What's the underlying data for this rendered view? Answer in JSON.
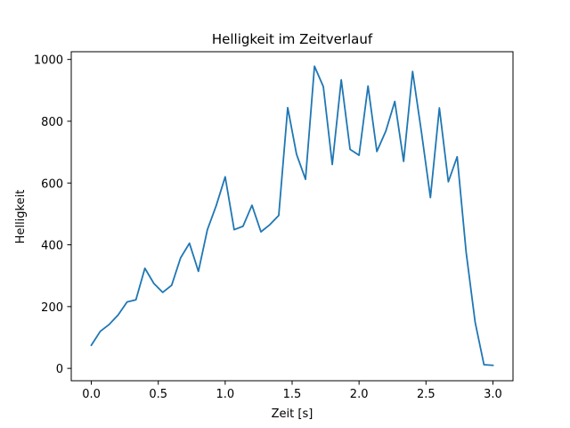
{
  "chart_data": {
    "type": "line",
    "title": "Helligkeit im Zeitverlauf",
    "xlabel": "Zeit [s]",
    "ylabel": "Helligkeit",
    "xlim": [
      -0.15,
      3.15
    ],
    "ylim": [
      -40,
      1025
    ],
    "xticks": [
      0.0,
      0.5,
      1.0,
      1.5,
      2.0,
      2.5,
      3.0
    ],
    "xtick_labels": [
      "0.0",
      "0.5",
      "1.0",
      "1.5",
      "2.0",
      "2.5",
      "3.0"
    ],
    "yticks": [
      0,
      200,
      400,
      600,
      800,
      1000
    ],
    "ytick_labels": [
      "0",
      "200",
      "400",
      "600",
      "800",
      "1000"
    ],
    "grid": false,
    "line_color": "#1f77b4",
    "series": [
      {
        "x": [
          0.0,
          0.067,
          0.133,
          0.2,
          0.267,
          0.333,
          0.4,
          0.467,
          0.533,
          0.6,
          0.667,
          0.733,
          0.8,
          0.867,
          0.933,
          1.0,
          1.067,
          1.133,
          1.2,
          1.267,
          1.333,
          1.4,
          1.467,
          1.533,
          1.6,
          1.667,
          1.733,
          1.8,
          1.867,
          1.933,
          2.0,
          2.067,
          2.133,
          2.2,
          2.267,
          2.333,
          2.4,
          2.467,
          2.533,
          2.6,
          2.667,
          2.733,
          2.8,
          2.867,
          2.933,
          3.0
        ],
        "values": [
          75,
          120,
          142,
          173,
          215,
          222,
          324,
          275,
          246,
          269,
          358,
          405,
          314,
          449,
          527,
          620,
          449,
          460,
          528,
          442,
          465,
          495,
          844,
          693,
          612,
          978,
          912,
          660,
          934,
          709,
          690,
          914,
          702,
          768,
          864,
          670,
          961,
          762,
          553,
          843,
          604,
          685,
          376,
          150,
          12,
          10
        ]
      }
    ]
  }
}
